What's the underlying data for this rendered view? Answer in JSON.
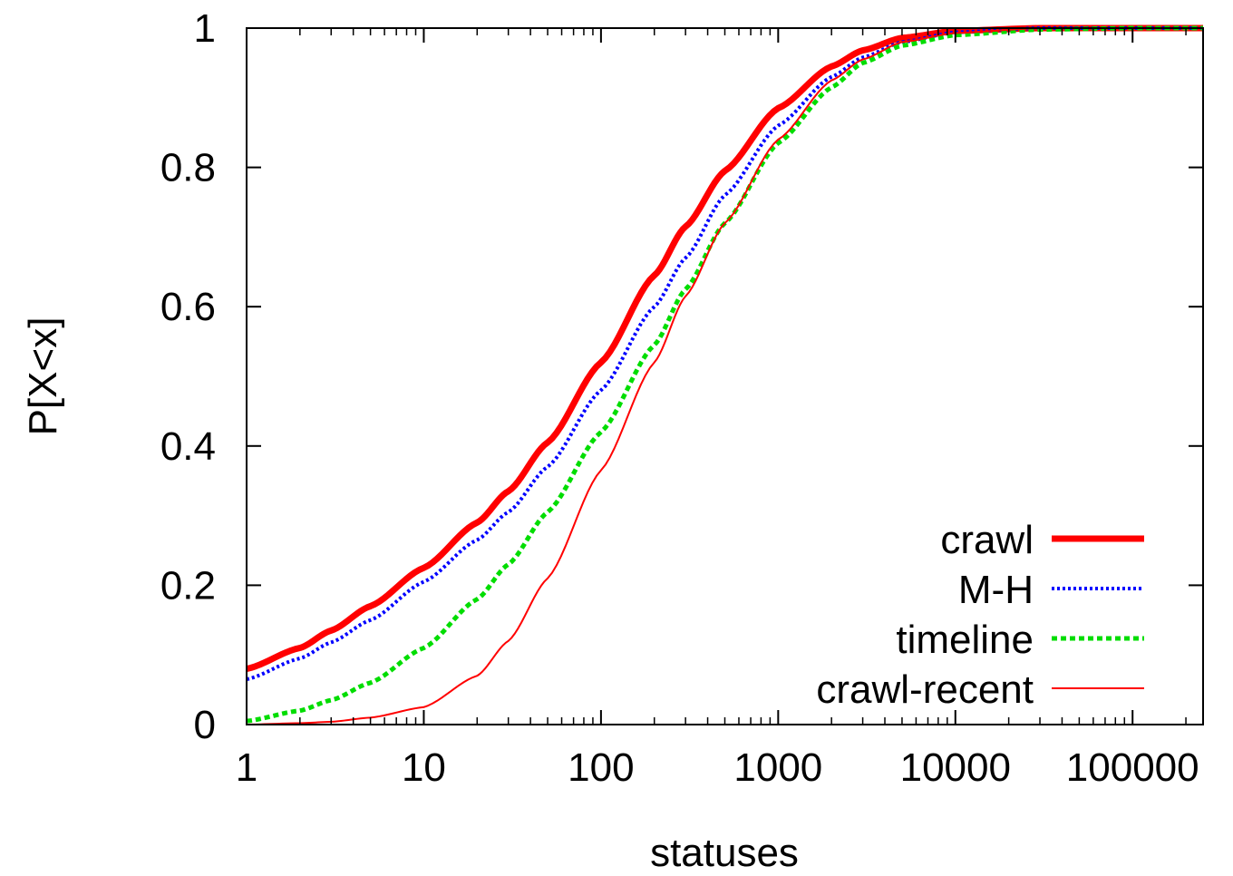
{
  "chart_data": {
    "type": "line",
    "xlabel": "statuses",
    "ylabel": "P[X<x]",
    "x_scale": "log",
    "xlim": [
      1,
      250000
    ],
    "ylim": [
      0,
      1
    ],
    "x_ticks": [
      1,
      10,
      100,
      1000,
      10000,
      100000
    ],
    "x_tick_labels": [
      "1",
      "10",
      "100",
      "1000",
      "10000",
      "100000"
    ],
    "y_ticks": [
      0,
      0.2,
      0.4,
      0.6,
      0.8,
      1
    ],
    "y_tick_labels": [
      "0",
      "0.2",
      "0.4",
      "0.6",
      "0.8",
      "1"
    ],
    "legend_position": "bottom-right",
    "grid": false,
    "series": [
      {
        "name": "crawl",
        "color": "#ff0000",
        "style": "solid-thick",
        "points": [
          [
            1,
            0.08
          ],
          [
            2,
            0.11
          ],
          [
            3,
            0.135
          ],
          [
            5,
            0.17
          ],
          [
            10,
            0.225
          ],
          [
            20,
            0.29
          ],
          [
            30,
            0.335
          ],
          [
            50,
            0.405
          ],
          [
            100,
            0.52
          ],
          [
            200,
            0.645
          ],
          [
            300,
            0.715
          ],
          [
            500,
            0.795
          ],
          [
            1000,
            0.885
          ],
          [
            2000,
            0.945
          ],
          [
            3000,
            0.968
          ],
          [
            5000,
            0.986
          ],
          [
            10000,
            0.996
          ],
          [
            30000,
            1.0
          ],
          [
            250000,
            1.0
          ]
        ]
      },
      {
        "name": "M-H",
        "color": "#0000ff",
        "style": "dotted",
        "points": [
          [
            1,
            0.065
          ],
          [
            2,
            0.095
          ],
          [
            3,
            0.118
          ],
          [
            5,
            0.15
          ],
          [
            10,
            0.205
          ],
          [
            20,
            0.265
          ],
          [
            30,
            0.305
          ],
          [
            50,
            0.37
          ],
          [
            100,
            0.48
          ],
          [
            200,
            0.6
          ],
          [
            300,
            0.67
          ],
          [
            500,
            0.76
          ],
          [
            1000,
            0.86
          ],
          [
            2000,
            0.93
          ],
          [
            3000,
            0.958
          ],
          [
            5000,
            0.98
          ],
          [
            10000,
            0.994
          ],
          [
            30000,
            1.0
          ],
          [
            250000,
            1.0
          ]
        ]
      },
      {
        "name": "timeline",
        "color": "#00dd00",
        "style": "dashed",
        "points": [
          [
            1,
            0.005
          ],
          [
            2,
            0.02
          ],
          [
            3,
            0.035
          ],
          [
            5,
            0.06
          ],
          [
            10,
            0.11
          ],
          [
            20,
            0.18
          ],
          [
            30,
            0.23
          ],
          [
            50,
            0.305
          ],
          [
            100,
            0.42
          ],
          [
            200,
            0.545
          ],
          [
            300,
            0.625
          ],
          [
            500,
            0.72
          ],
          [
            1000,
            0.835
          ],
          [
            2000,
            0.915
          ],
          [
            3000,
            0.95
          ],
          [
            5000,
            0.975
          ],
          [
            10000,
            0.99
          ],
          [
            30000,
            0.998
          ],
          [
            100000,
            1.0
          ],
          [
            250000,
            1.0
          ]
        ]
      },
      {
        "name": "crawl-recent",
        "color": "#ff0000",
        "style": "solid-thin",
        "points": [
          [
            1,
            0.0
          ],
          [
            2,
            0.002
          ],
          [
            3,
            0.004
          ],
          [
            5,
            0.01
          ],
          [
            10,
            0.025
          ],
          [
            20,
            0.07
          ],
          [
            30,
            0.12
          ],
          [
            50,
            0.21
          ],
          [
            100,
            0.365
          ],
          [
            200,
            0.52
          ],
          [
            300,
            0.615
          ],
          [
            500,
            0.72
          ],
          [
            1000,
            0.84
          ],
          [
            2000,
            0.925
          ],
          [
            3000,
            0.955
          ],
          [
            5000,
            0.98
          ],
          [
            10000,
            0.993
          ],
          [
            30000,
            1.0
          ],
          [
            250000,
            1.0
          ]
        ]
      }
    ]
  }
}
